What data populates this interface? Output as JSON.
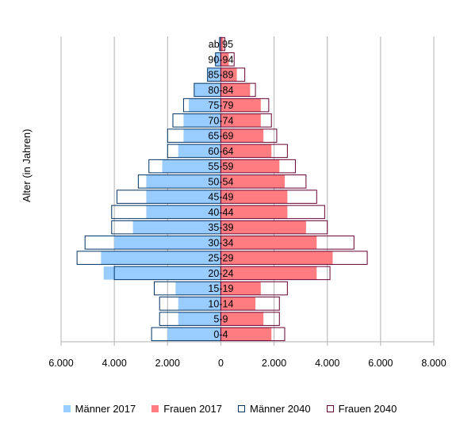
{
  "chart_data": {
    "type": "bar",
    "orientation": "horizontal",
    "layout": "population-pyramid",
    "ylabel": "Alter (in Jahren)",
    "xlabel": "",
    "xlim": [
      -6000,
      8000
    ],
    "x_ticks": [
      -6000,
      -4000,
      -2000,
      0,
      2000,
      4000,
      6000,
      8000
    ],
    "x_tick_labels": [
      "6.000",
      "4.000",
      "2.000",
      "0",
      "2.000",
      "4.000",
      "6.000",
      "8.000"
    ],
    "grid": true,
    "legend_position": "bottom",
    "categories": [
      "0-4",
      "5-9",
      "10-14",
      "15-19",
      "20-24",
      "25-29",
      "30-34",
      "35-39",
      "40-44",
      "45-49",
      "50-54",
      "55-59",
      "60-64",
      "65-69",
      "70-74",
      "75-79",
      "80-84",
      "85-89",
      "90-94",
      "ab 95"
    ],
    "series": [
      {
        "name": "Männer 2017",
        "side": "left",
        "style": "filled",
        "color": "#99ccff",
        "values": [
          2000,
          1600,
          1600,
          1700,
          4400,
          4500,
          4000,
          3300,
          2800,
          2800,
          2800,
          2200,
          1600,
          1400,
          1400,
          1200,
          1000,
          500,
          200,
          50
        ]
      },
      {
        "name": "Frauen 2017",
        "side": "right",
        "style": "filled",
        "color": "#ff7c80",
        "values": [
          1900,
          1600,
          1300,
          1500,
          3600,
          4200,
          3600,
          3200,
          2500,
          2500,
          2400,
          2200,
          1900,
          1600,
          1500,
          1500,
          1100,
          600,
          300,
          100
        ]
      },
      {
        "name": "Männer 2040",
        "side": "left",
        "style": "outline",
        "color": "#003366",
        "values": [
          2600,
          2300,
          2300,
          2500,
          4000,
          5400,
          5100,
          4100,
          4100,
          3900,
          3100,
          2700,
          2000,
          2000,
          1800,
          1400,
          1000,
          500,
          200,
          50
        ]
      },
      {
        "name": "Frauen 2040",
        "side": "right",
        "style": "outline",
        "color": "#660033",
        "values": [
          2400,
          2200,
          2200,
          2500,
          4100,
          5500,
          5000,
          4000,
          3900,
          3600,
          3200,
          2800,
          2500,
          2100,
          1900,
          1800,
          1300,
          900,
          500,
          150
        ]
      }
    ]
  }
}
